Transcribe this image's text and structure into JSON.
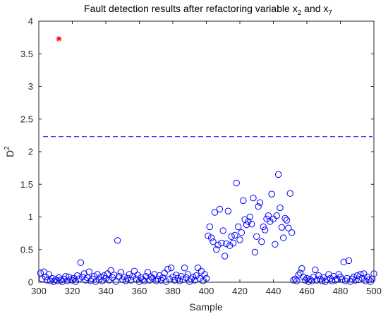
{
  "chart_data": {
    "type": "scatter",
    "title_main": "Fault detection results after refactoring variable x",
    "title_sub1": "2",
    "title_mid": " and x",
    "title_sub2": "7",
    "xlabel": "Sample",
    "ylabel_main": "D",
    "ylabel_sup": "2",
    "xlim": [
      300,
      500
    ],
    "ylim": [
      0,
      4
    ],
    "xticks": [
      "300",
      "320",
      "340",
      "360",
      "380",
      "400",
      "420",
      "440",
      "460",
      "480",
      "500"
    ],
    "yticks": [
      "0",
      "0.5",
      "1",
      "1.5",
      "2",
      "2.5",
      "3",
      "3.5",
      "4"
    ],
    "grid": false,
    "colors": {
      "points": "#0000ff",
      "threshold": "#0000ff",
      "outlier": "#ff0000",
      "axes": "#262626"
    },
    "threshold": {
      "y": 2.23,
      "style": "dashed"
    },
    "outlier": {
      "x": 312,
      "y": 3.73,
      "marker": "asterisk"
    },
    "points": [
      [
        301,
        0.14
      ],
      [
        302,
        0.05
      ],
      [
        303,
        0.16
      ],
      [
        304,
        0.08
      ],
      [
        305,
        0.03
      ],
      [
        306,
        0.12
      ],
      [
        307,
        0.02
      ],
      [
        308,
        0.06
      ],
      [
        309,
        0.01
      ],
      [
        310,
        0.04
      ],
      [
        311,
        0.02
      ],
      [
        312,
        0.07
      ],
      [
        313,
        0.03
      ],
      [
        314,
        0.01
      ],
      [
        315,
        0.05
      ],
      [
        316,
        0.09
      ],
      [
        317,
        0.02
      ],
      [
        318,
        0.08
      ],
      [
        319,
        0.04
      ],
      [
        320,
        0.03
      ],
      [
        321,
        0.06
      ],
      [
        322,
        0.01
      ],
      [
        323,
        0.1
      ],
      [
        324,
        0.05
      ],
      [
        325,
        0.3
      ],
      [
        326,
        0.08
      ],
      [
        327,
        0.13
      ],
      [
        328,
        0.03
      ],
      [
        329,
        0.07
      ],
      [
        330,
        0.16
      ],
      [
        331,
        0.02
      ],
      [
        332,
        0.05
      ],
      [
        333,
        0.09
      ],
      [
        334,
        0.01
      ],
      [
        335,
        0.12
      ],
      [
        336,
        0.04
      ],
      [
        337,
        0.08
      ],
      [
        338,
        0.02
      ],
      [
        339,
        0.1
      ],
      [
        340,
        0.06
      ],
      [
        341,
        0.13
      ],
      [
        342,
        0.03
      ],
      [
        343,
        0.18
      ],
      [
        344,
        0.07
      ],
      [
        345,
        0.11
      ],
      [
        346,
        0.01
      ],
      [
        347,
        0.64
      ],
      [
        348,
        0.09
      ],
      [
        349,
        0.15
      ],
      [
        350,
        0.04
      ],
      [
        351,
        0.08
      ],
      [
        352,
        0.02
      ],
      [
        353,
        0.06
      ],
      [
        354,
        0.12
      ],
      [
        355,
        0.03
      ],
      [
        356,
        0.09
      ],
      [
        357,
        0.17
      ],
      [
        358,
        0.05
      ],
      [
        359,
        0.11
      ],
      [
        360,
        0.01
      ],
      [
        361,
        0.07
      ],
      [
        362,
        0.04
      ],
      [
        363,
        0.02
      ],
      [
        364,
        0.09
      ],
      [
        365,
        0.15
      ],
      [
        366,
        0.03
      ],
      [
        367,
        0.08
      ],
      [
        368,
        0.06
      ],
      [
        369,
        0.12
      ],
      [
        370,
        0.02
      ],
      [
        371,
        0.05
      ],
      [
        372,
        0.1
      ],
      [
        373,
        0.03
      ],
      [
        374,
        0.07
      ],
      [
        375,
        0.14
      ],
      [
        376,
        0.01
      ],
      [
        377,
        0.2
      ],
      [
        378,
        0.05
      ],
      [
        379,
        0.22
      ],
      [
        380,
        0.08
      ],
      [
        381,
        0.03
      ],
      [
        382,
        0.11
      ],
      [
        383,
        0.06
      ],
      [
        384,
        0.02
      ],
      [
        385,
        0.09
      ],
      [
        386,
        0.04
      ],
      [
        387,
        0.22
      ],
      [
        388,
        0.07
      ],
      [
        389,
        0.12
      ],
      [
        390,
        0.01
      ],
      [
        391,
        0.05
      ],
      [
        392,
        0.08
      ],
      [
        393,
        0.03
      ],
      [
        394,
        0.1
      ],
      [
        395,
        0.22
      ],
      [
        396,
        0.06
      ],
      [
        397,
        0.17
      ],
      [
        398,
        0.02
      ],
      [
        399,
        0.12
      ],
      [
        400,
        0.06
      ],
      [
        401,
        0.71
      ],
      [
        402,
        0.85
      ],
      [
        403,
        0.68
      ],
      [
        404,
        0.62
      ],
      [
        405,
        1.07
      ],
      [
        406,
        0.5
      ],
      [
        407,
        0.57
      ],
      [
        408,
        1.12
      ],
      [
        409,
        0.6
      ],
      [
        410,
        0.79
      ],
      [
        411,
        0.4
      ],
      [
        412,
        0.59
      ],
      [
        413,
        1.09
      ],
      [
        414,
        0.56
      ],
      [
        415,
        0.7
      ],
      [
        416,
        0.6
      ],
      [
        417,
        0.72
      ],
      [
        418,
        1.52
      ],
      [
        419,
        0.85
      ],
      [
        420,
        0.65
      ],
      [
        421,
        0.76
      ],
      [
        422,
        1.25
      ],
      [
        423,
        0.96
      ],
      [
        424,
        0.88
      ],
      [
        425,
        0.93
      ],
      [
        426,
        1.0
      ],
      [
        427,
        0.89
      ],
      [
        428,
        1.29
      ],
      [
        429,
        0.46
      ],
      [
        430,
        0.7
      ],
      [
        431,
        1.16
      ],
      [
        432,
        1.22
      ],
      [
        433,
        0.62
      ],
      [
        434,
        0.85
      ],
      [
        435,
        0.8
      ],
      [
        436,
        0.97
      ],
      [
        437,
        1.02
      ],
      [
        438,
        0.93
      ],
      [
        439,
        1.35
      ],
      [
        440,
        0.97
      ],
      [
        441,
        0.58
      ],
      [
        442,
        1.02
      ],
      [
        443,
        1.65
      ],
      [
        444,
        1.14
      ],
      [
        445,
        0.84
      ],
      [
        446,
        0.68
      ],
      [
        447,
        0.98
      ],
      [
        448,
        0.95
      ],
      [
        449,
        0.83
      ],
      [
        450,
        1.36
      ],
      [
        451,
        0.76
      ],
      [
        452,
        0.03
      ],
      [
        453,
        0.05
      ],
      [
        454,
        0.02
      ],
      [
        455,
        0.11
      ],
      [
        456,
        0.14
      ],
      [
        457,
        0.21
      ],
      [
        458,
        0.08
      ],
      [
        459,
        0.03
      ],
      [
        460,
        0.06
      ],
      [
        461,
        0.01
      ],
      [
        462,
        0.04
      ],
      [
        463,
        0.02
      ],
      [
        464,
        0.08
      ],
      [
        465,
        0.19
      ],
      [
        466,
        0.03
      ],
      [
        467,
        0.1
      ],
      [
        468,
        0.05
      ],
      [
        469,
        0.02
      ],
      [
        470,
        0.07
      ],
      [
        471,
        0.01
      ],
      [
        472,
        0.04
      ],
      [
        473,
        0.12
      ],
      [
        474,
        0.06
      ],
      [
        475,
        0.02
      ],
      [
        476,
        0.09
      ],
      [
        477,
        0.03
      ],
      [
        478,
        0.05
      ],
      [
        479,
        0.12
      ],
      [
        480,
        0.08
      ],
      [
        481,
        0.04
      ],
      [
        482,
        0.31
      ],
      [
        483,
        0.02
      ],
      [
        484,
        0.06
      ],
      [
        485,
        0.33
      ],
      [
        486,
        0.01
      ],
      [
        487,
        0.05
      ],
      [
        488,
        0.08
      ],
      [
        489,
        0.03
      ],
      [
        490,
        0.1
      ],
      [
        491,
        0.04
      ],
      [
        492,
        0.12
      ],
      [
        493,
        0.06
      ],
      [
        494,
        0.13
      ],
      [
        495,
        0.02
      ],
      [
        496,
        0.08
      ],
      [
        497,
        0.04
      ],
      [
        498,
        0.01
      ],
      [
        499,
        0.05
      ],
      [
        500,
        0.13
      ]
    ]
  }
}
